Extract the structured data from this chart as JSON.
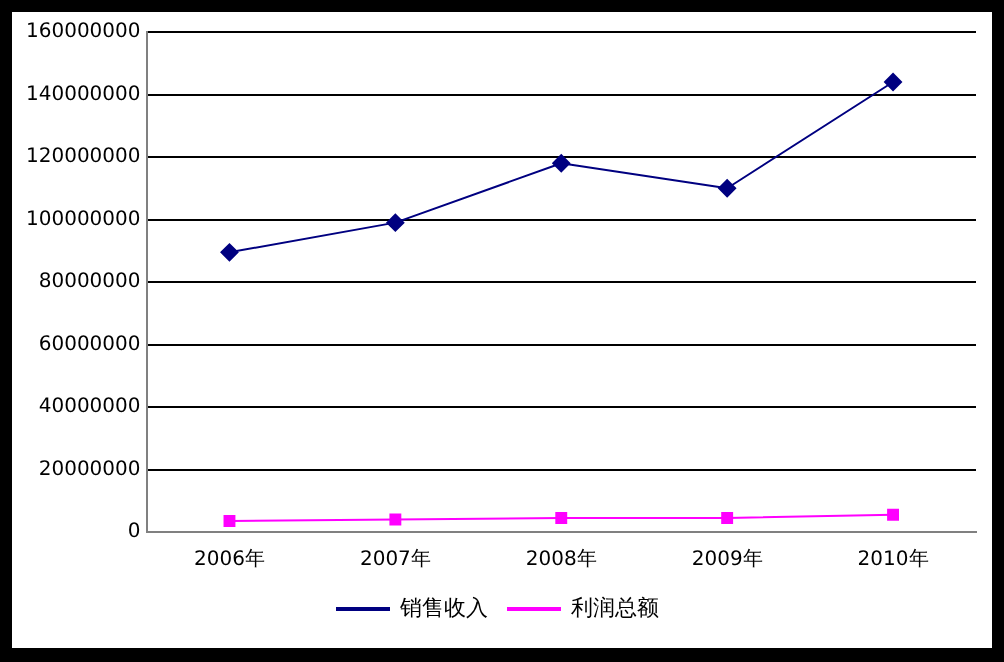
{
  "chart_data": {
    "type": "line",
    "categories": [
      "2006年",
      "2007年",
      "2008年",
      "2009年",
      "2010年"
    ],
    "series": [
      {
        "name": "销售收入",
        "color": "#000080",
        "marker": "diamond",
        "values": [
          89500000,
          99000000,
          118000000,
          110000000,
          144000000
        ]
      },
      {
        "name": "利润总额",
        "color": "#ff00ff",
        "marker": "square",
        "values": [
          3500000,
          4000000,
          4500000,
          4500000,
          5500000
        ]
      }
    ],
    "ylim": [
      0,
      160000000
    ],
    "yticks": [
      0,
      20000000,
      40000000,
      60000000,
      80000000,
      100000000,
      120000000,
      140000000,
      160000000
    ],
    "grid": "y",
    "legend": "bottom"
  }
}
